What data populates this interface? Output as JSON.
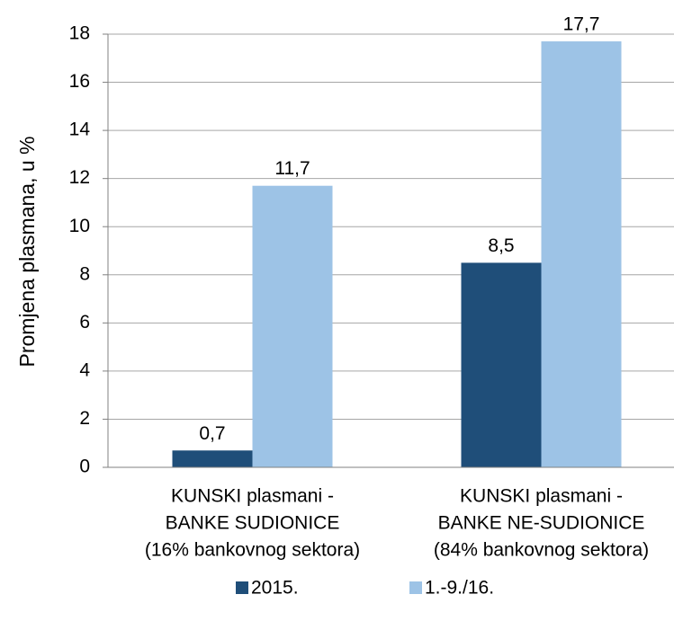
{
  "chart_data": {
    "type": "bar",
    "y_label": "Promjena plasmana, u %",
    "categories": [
      [
        "KUNSKI plasmani -",
        "BANKE SUDIONICE",
        "(16% bankovnog sektora)"
      ],
      [
        "KUNSKI plasmani -",
        "BANKE NE-SUDIONICE",
        "(84% bankovnog sektora)"
      ]
    ],
    "series": [
      {
        "name": "2015.",
        "color": "#1f4e79",
        "values": [
          0.7,
          8.5
        ],
        "value_labels": [
          "0,7",
          "8,5"
        ]
      },
      {
        "name": "1.-9./16.",
        "color": "#9dc3e6",
        "values": [
          11.7,
          17.7
        ],
        "value_labels": [
          "11,7",
          "17,7"
        ]
      }
    ],
    "ylim": [
      0,
      18
    ],
    "yticks": [
      0,
      2,
      4,
      6,
      8,
      10,
      12,
      14,
      16,
      18
    ],
    "grid": true
  }
}
